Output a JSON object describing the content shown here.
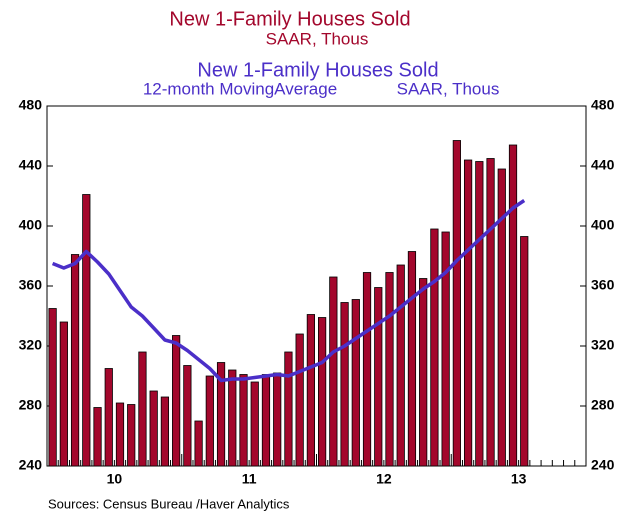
{
  "chart_data": {
    "type": "bar_line",
    "title": "New 1-Family Houses Sold",
    "subtitle": "SAAR, Thous",
    "title2": "New 1-Family Houses Sold",
    "subtitle2_left": "12-month MovingAverage",
    "subtitle2_right": "SAAR, Thous",
    "source": "Sources:  Census Bureau /Haver Analytics",
    "x_labels": [
      "10",
      "11",
      "12",
      "13"
    ],
    "series": [
      {
        "name": "New 1-Family Houses Sold",
        "kind": "bar",
        "color": "#a3072c",
        "values": [
          345,
          336,
          381,
          421,
          279,
          305,
          282,
          281,
          316,
          290,
          286,
          327,
          307,
          270,
          300,
          309,
          304,
          301,
          296,
          301,
          302,
          316,
          328,
          341,
          339,
          366,
          349,
          351,
          369,
          359,
          369,
          374,
          383,
          365,
          398,
          396,
          457,
          444,
          443,
          445,
          438,
          454,
          393
        ]
      },
      {
        "name": "New 1-Family Houses Sold 12-month MovingAverage",
        "kind": "line",
        "color": "#4b2fc8",
        "values": [
          375,
          372,
          375,
          383,
          376,
          368,
          357,
          346,
          340,
          332,
          324,
          322,
          317,
          311,
          305,
          297,
          298,
          298,
          299,
          300,
          301,
          300,
          303,
          306,
          309,
          316,
          320,
          325,
          330,
          335,
          340,
          346,
          352,
          358,
          363,
          369,
          377,
          384,
          391,
          398,
          405,
          412,
          417
        ]
      }
    ],
    "ylim": [
      240,
      480
    ],
    "yticks": [
      240,
      280,
      320,
      360,
      400,
      440,
      480
    ]
  }
}
